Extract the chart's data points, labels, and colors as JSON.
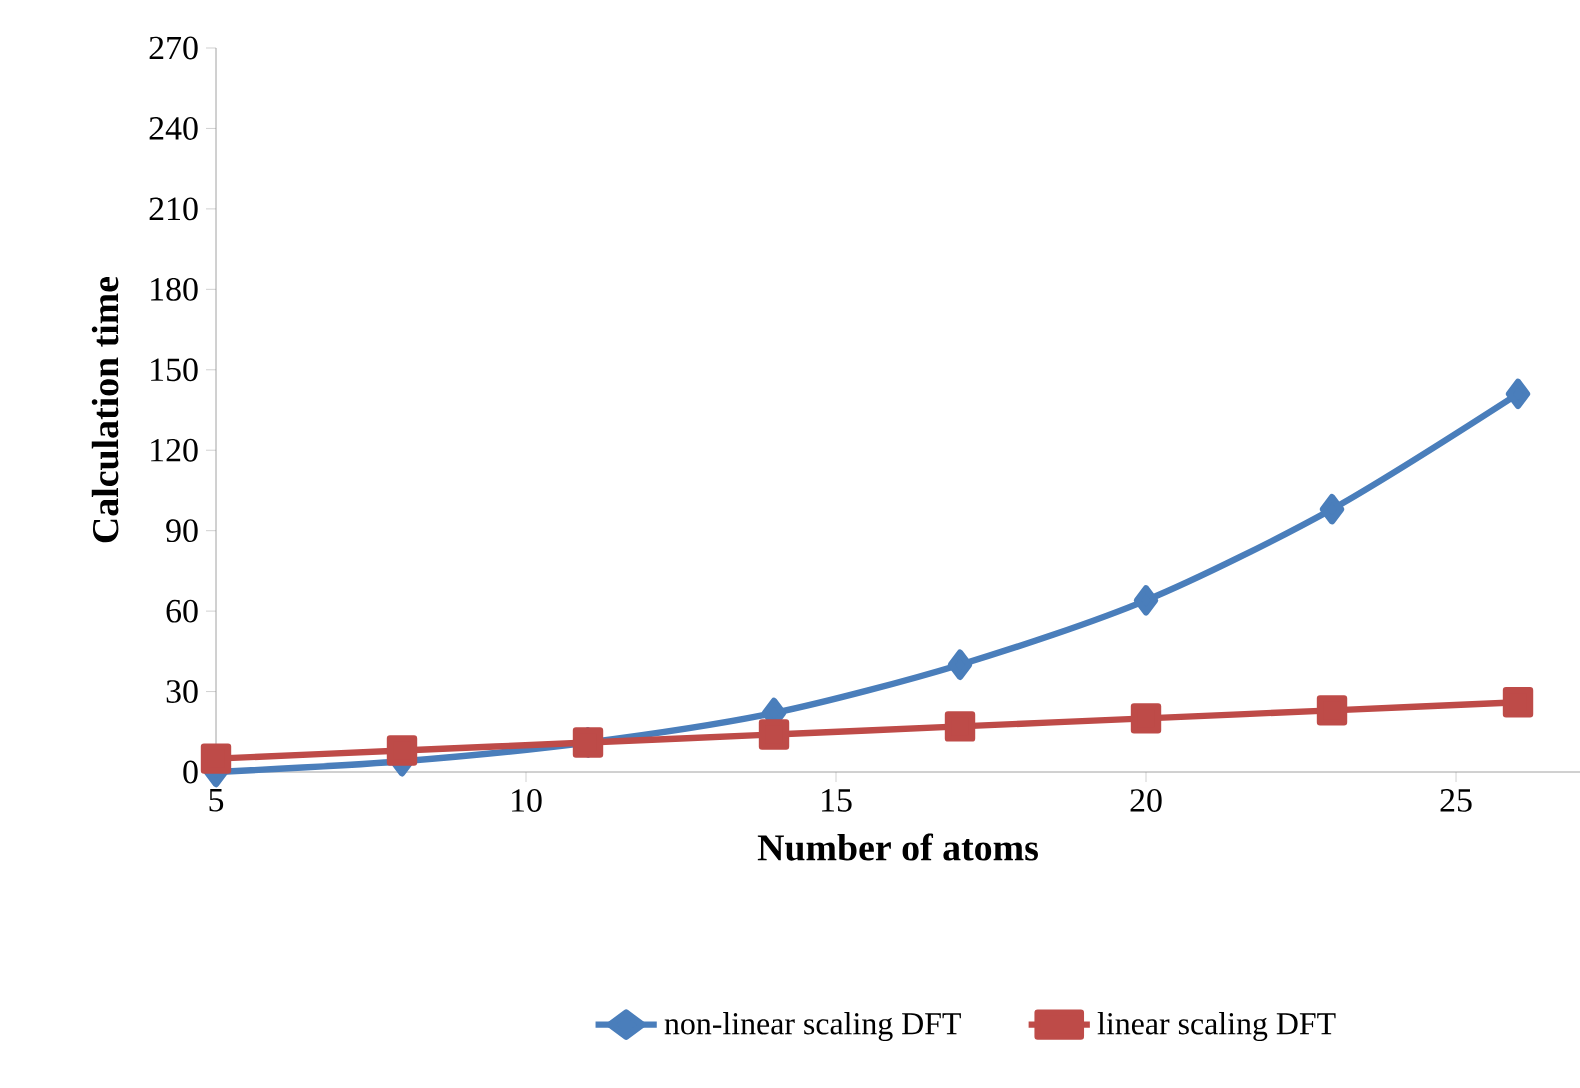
{
  "chart_data": {
    "type": "line",
    "xlabel": "Number of atoms",
    "ylabel": "Calculation time",
    "xlim": [
      5,
      27
    ],
    "xticks": [
      5,
      10,
      15,
      20,
      25
    ],
    "ylim": [
      0,
      270
    ],
    "yticks": [
      0,
      30,
      60,
      90,
      120,
      150,
      180,
      210,
      240,
      270
    ],
    "grid": false,
    "legend": "bottom",
    "line_style": "solid",
    "series": [
      {
        "name": "non-linear scaling DFT",
        "color": "#4a7ebb",
        "marker": "diamond",
        "x": [
          5,
          8,
          11,
          14,
          17,
          20,
          23,
          26
        ],
        "values": [
          0,
          4,
          11,
          22,
          40,
          64,
          98,
          141
        ]
      },
      {
        "name": "linear scaling DFT",
        "color": "#be4b48",
        "marker": "square",
        "x": [
          5,
          8,
          11,
          14,
          17,
          20,
          23,
          26
        ],
        "values": [
          5,
          8,
          11,
          14,
          17,
          20,
          23,
          26
        ]
      }
    ]
  }
}
